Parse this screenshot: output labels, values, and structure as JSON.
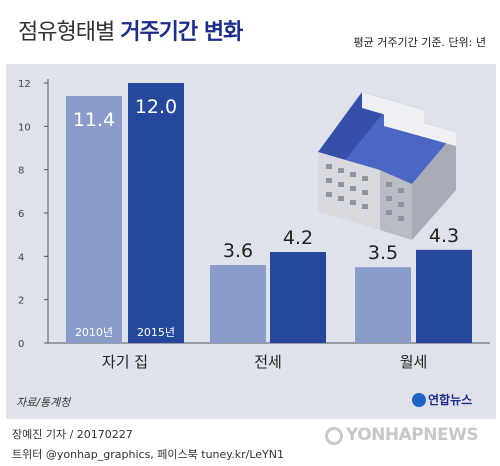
{
  "header": {
    "title_light": "점유형태별",
    "title_bold": "거주기간 변화",
    "subtitle": "평균 거주기간 기준. 단위: 년"
  },
  "chart_data": {
    "type": "bar",
    "categories": [
      "자기 집",
      "전세",
      "월세"
    ],
    "series": [
      {
        "name": "2010년",
        "values": [
          11.4,
          3.6,
          3.5
        ],
        "labels": [
          "11.4",
          "3.6",
          "3.5"
        ],
        "color": "#8a9dca"
      },
      {
        "name": "2015년",
        "values": [
          12.0,
          4.2,
          4.3
        ],
        "labels": [
          "12.0",
          "4.2",
          "4.3"
        ],
        "color": "#25479c"
      }
    ],
    "yticks": [
      "0",
      "2",
      "4",
      "6",
      "8",
      "10",
      "12"
    ],
    "ylim": [
      0,
      12.5
    ],
    "grid": false,
    "legend": "inside-first-bars"
  },
  "footer": {
    "source": "자료/통계청",
    "logo": "연합뉴스",
    "credit_line1": "장예진 기자 / 20170227",
    "credit_line2": "트위터 @yonhap_graphics, 페이스북 tuney.kr/LeYN1",
    "watermark": "YONHAPNEWS"
  },
  "colors": {
    "accent": "#1d2d8c",
    "panel": "#dfe2ea"
  },
  "icons": [
    "building-illustration"
  ]
}
